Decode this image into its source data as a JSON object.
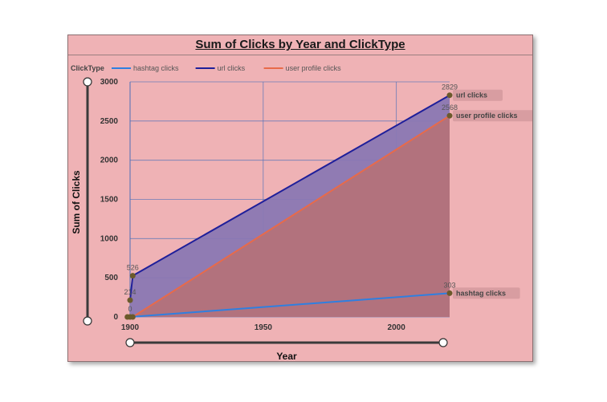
{
  "chart_data": {
    "type": "area",
    "title": "Sum of Clicks by Year and ClickType",
    "xlabel": "Year",
    "ylabel": "Sum of Clicks",
    "legend_title": "ClickType",
    "xlim": [
      1900,
      2020
    ],
    "ylim": [
      0,
      3000
    ],
    "x_ticks": [
      1900,
      1950,
      2000
    ],
    "y_ticks": [
      0,
      500,
      1000,
      1500,
      2000,
      2500,
      3000
    ],
    "grid": true,
    "legend_position": "top-left",
    "series": [
      {
        "name": "hashtag clicks",
        "color": "#2f7fe0",
        "fill": false,
        "points": [
          [
            1900,
            0
          ],
          [
            2020,
            303
          ]
        ],
        "point_labels": [
          "0",
          "303"
        ]
      },
      {
        "name": "url clicks",
        "color": "#1f1f9a",
        "fill": "#8a78b3",
        "points": [
          [
            1900,
            214
          ],
          [
            1901,
            526
          ],
          [
            2020,
            2829
          ]
        ],
        "point_labels": [
          "214",
          "526",
          "2829"
        ]
      },
      {
        "name": "user profile clicks",
        "color": "#e86a4a",
        "fill": "#b4727a",
        "points": [
          [
            1899,
            0
          ],
          [
            1901,
            0
          ],
          [
            2020,
            2568
          ]
        ],
        "point_labels": [
          "",
          "",
          "2568"
        ]
      }
    ],
    "end_tags": [
      "url clicks",
      "user profile clicks",
      "hashtag clicks"
    ]
  }
}
